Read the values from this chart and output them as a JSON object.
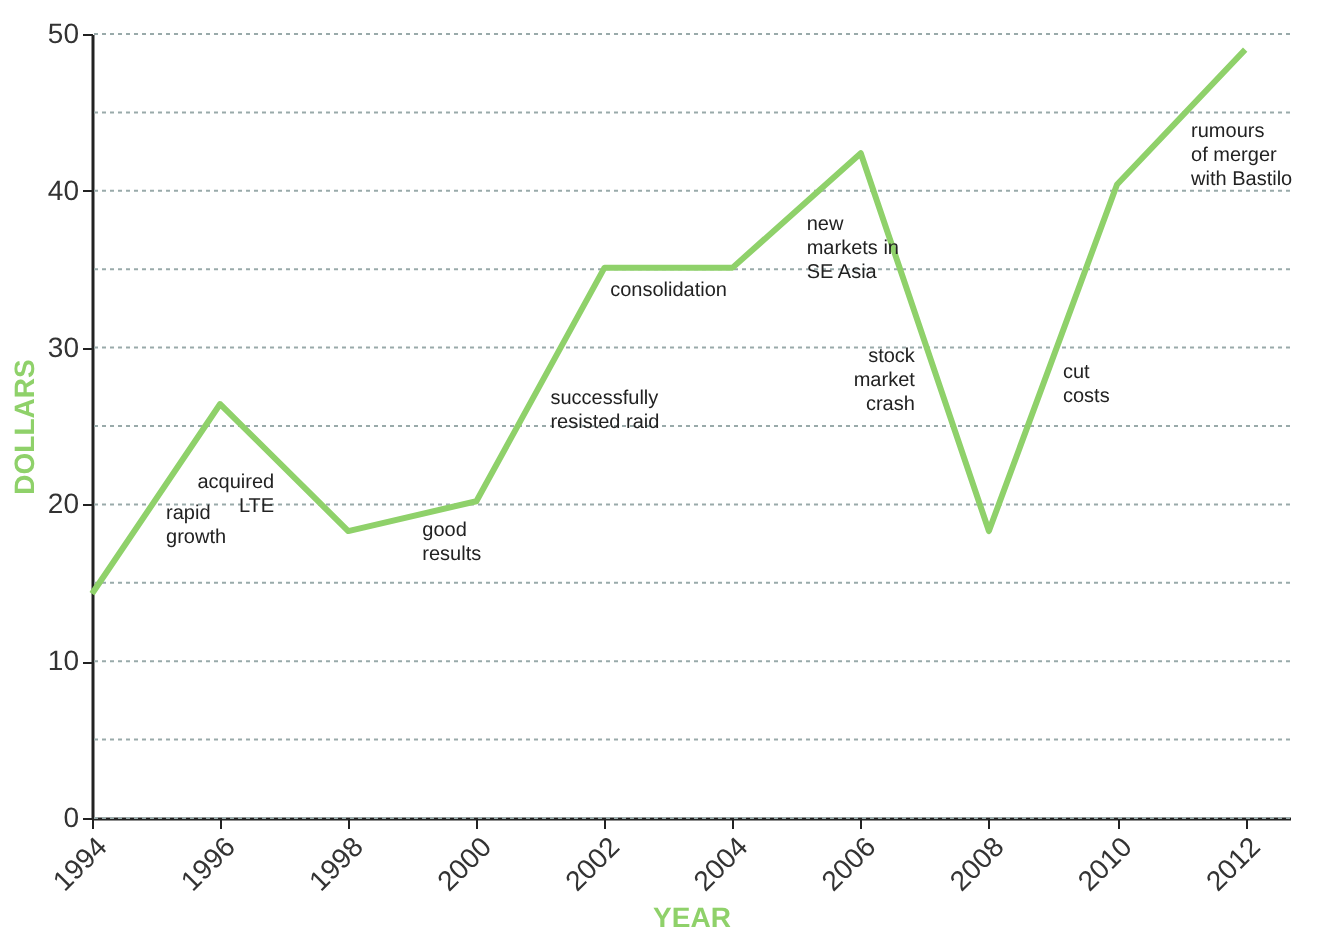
{
  "chart_data": {
    "type": "line",
    "xlabel": "YEAR",
    "ylabel": "DOLLARS",
    "x": [
      1994,
      1996,
      1998,
      2000,
      2002,
      2004,
      2006,
      2008,
      2010,
      2012
    ],
    "values": [
      14.3,
      26.4,
      18.3,
      20.2,
      35.1,
      35.1,
      42.4,
      18.3,
      40.4,
      49
    ],
    "color": "#8fd16a",
    "xlim": [
      1994,
      2012.7
    ],
    "xticks": [
      1994,
      1996,
      1998,
      2000,
      2002,
      2004,
      2006,
      2008,
      2010,
      2012
    ],
    "ylim": [
      0,
      50
    ],
    "yticks": [
      0,
      {
        "value": 5,
        "label": null
      },
      10,
      {
        "value": 15,
        "label": null
      },
      20,
      {
        "value": 25,
        "label": null
      },
      30,
      {
        "value": 35,
        "label": null
      },
      40,
      {
        "value": 45,
        "label": null
      },
      50
    ],
    "grid": "y",
    "marker": "none",
    "line_style": "solid",
    "annotations": [
      {
        "text": "rapid\ngrowth",
        "x": 1995,
        "y": 20.35
      },
      {
        "text": "acquired\nLTE",
        "x": 1997,
        "y": 22.35
      },
      {
        "text": "good\nresults",
        "x": 1999,
        "y": 19.25
      },
      {
        "text": "successfully\nresisted raid",
        "x": 2001,
        "y": 27.65
      },
      {
        "text": "consolidation",
        "x": 2003,
        "y": 35.1
      },
      {
        "text": "new\nmarkets in\nSE Asia",
        "x": 2005,
        "y": 38.75
      },
      {
        "text": "stock\nmarket\ncrash",
        "x": 2007,
        "y": 30.35
      },
      {
        "text": "cut\ncosts",
        "x": 2009,
        "y": 29.35
      },
      {
        "text": "rumours\nof merger\nwith Bastilo",
        "x": 2011,
        "y": 44.7
      }
    ]
  }
}
